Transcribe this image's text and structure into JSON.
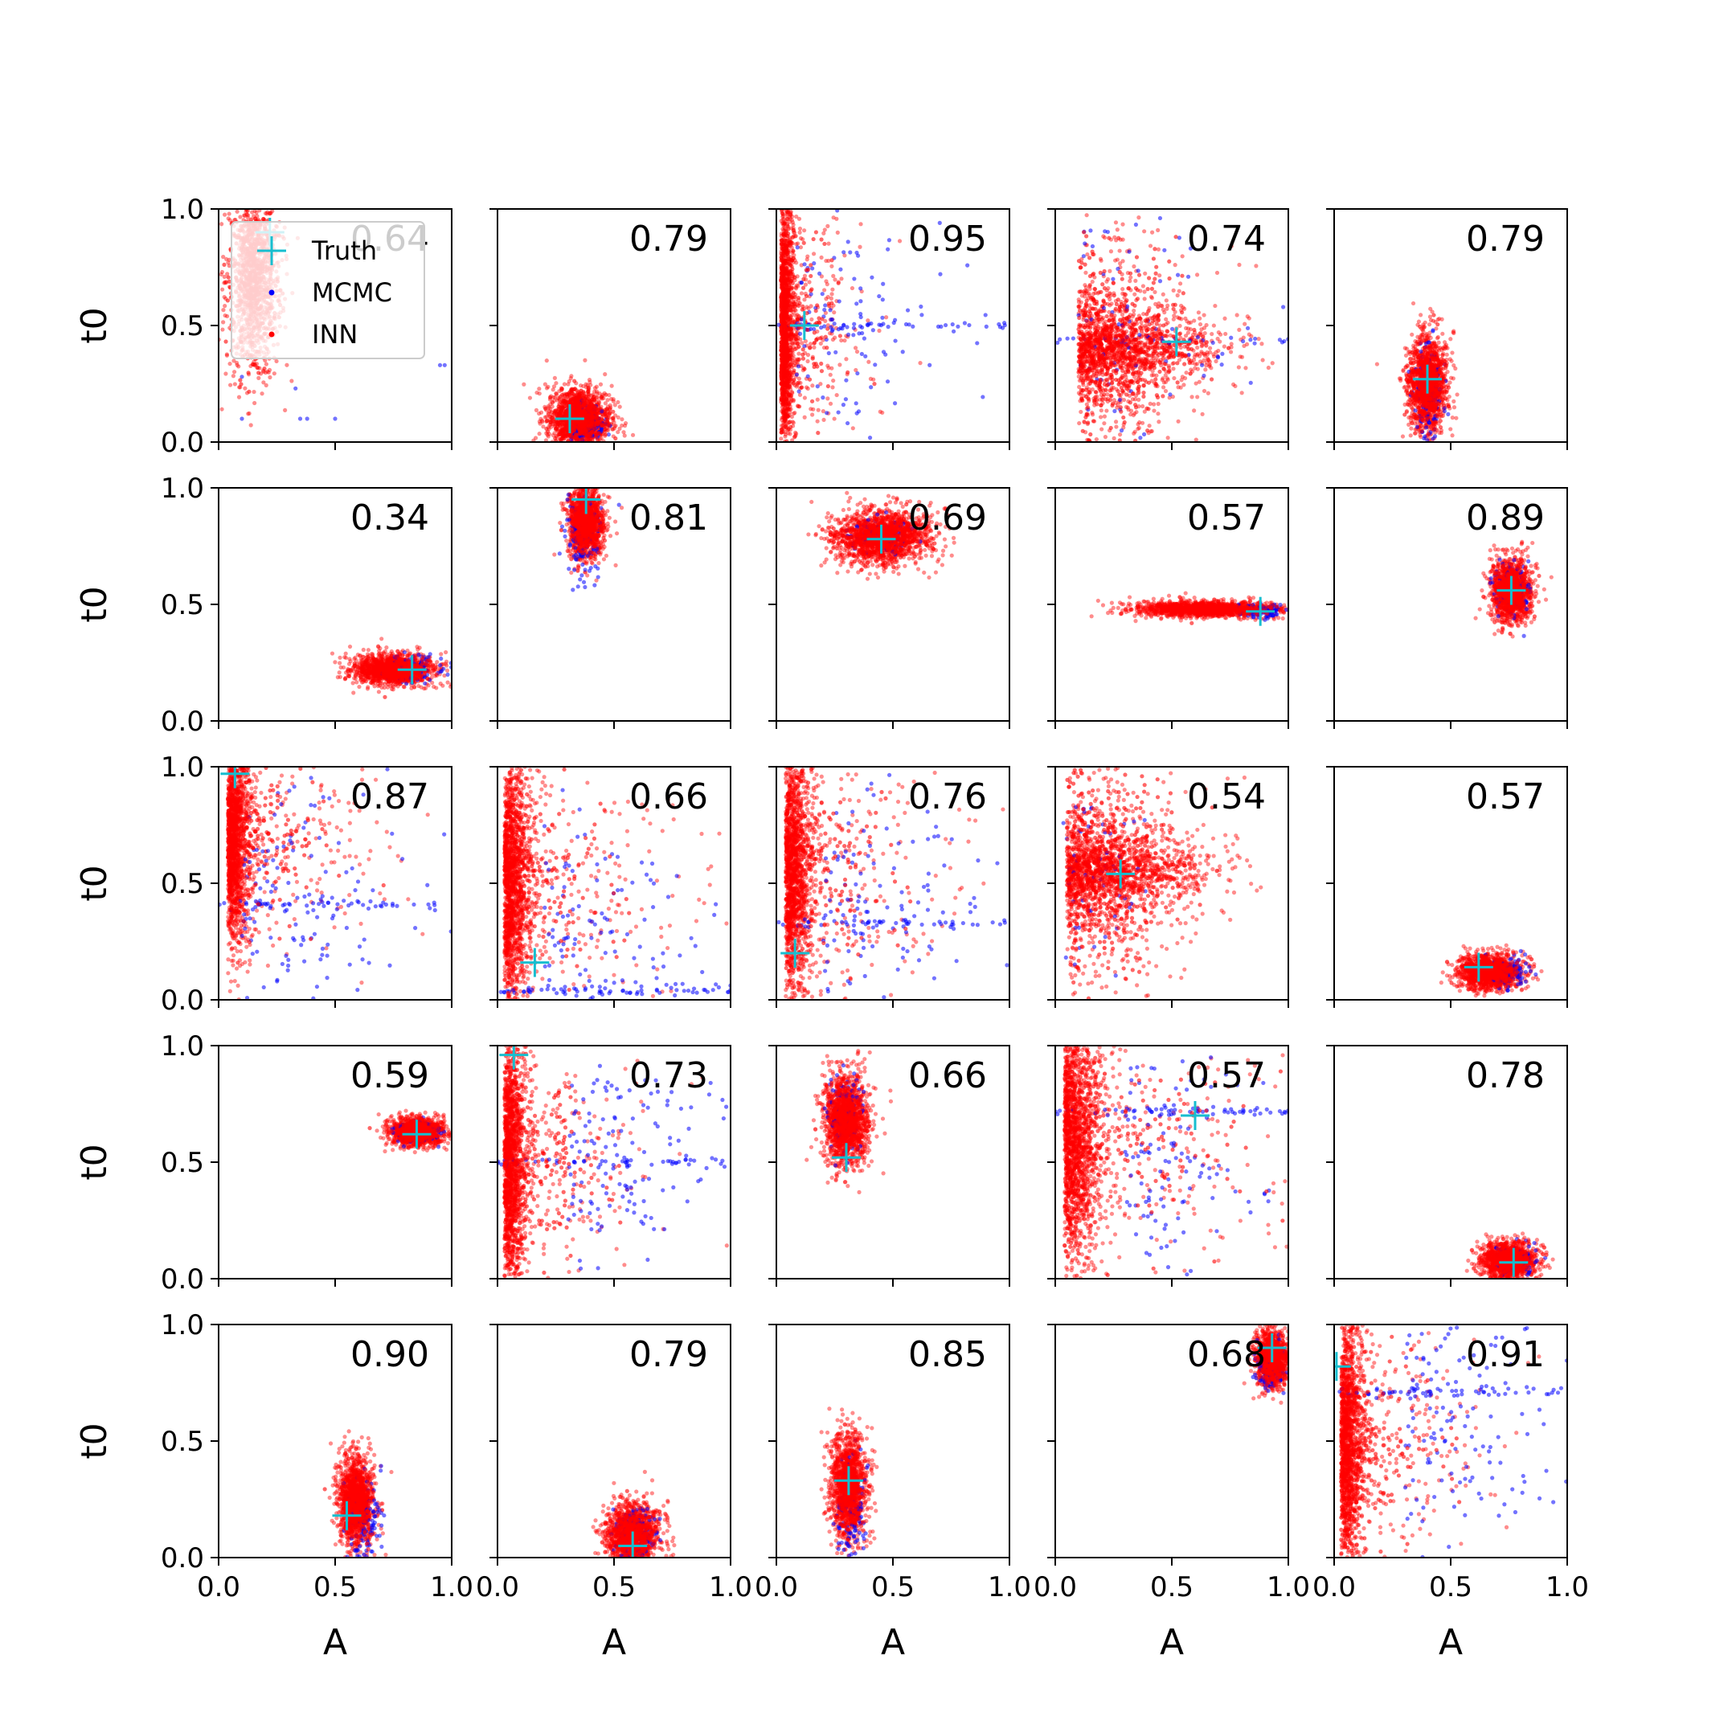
{
  "chart_data": {
    "type": "scatter",
    "layout": "5x5 grid of panels",
    "xlabel": "A",
    "ylabel": "t0",
    "xlim": [
      0,
      1
    ],
    "ylim": [
      0,
      1
    ],
    "x_ticks": [
      "0.0",
      "0.5",
      "1.0"
    ],
    "y_ticks": [
      "0.0",
      "0.5",
      "1.0"
    ],
    "grid": false,
    "legend": {
      "placement": "top-left of first panel",
      "entries": [
        {
          "label": "Truth",
          "marker": "plus",
          "color": "#17BECF"
        },
        {
          "label": "MCMC",
          "marker": "dot",
          "color": "#0000FF"
        },
        {
          "label": "INN",
          "marker": "dot",
          "color": "#FF0000"
        }
      ]
    },
    "colors": {
      "truth": "#17BECF",
      "mcmc": "#0000FF",
      "inn": "#FF0000"
    },
    "panels": [
      {
        "score": "0.64",
        "truth": [
          0.22,
          0.9
        ],
        "inn": {
          "shape": "blob",
          "cx": 0.15,
          "cy": 0.7,
          "sx": 0.06,
          "sy": 0.22,
          "n": 900
        },
        "mcmc": {
          "shape": "sparse",
          "points": [
            [
              0.35,
              0.1
            ],
            [
              0.38,
              0.1
            ],
            [
              0.5,
              0.1
            ],
            [
              0.97,
              0.33
            ],
            [
              0.95,
              0.33
            ],
            [
              0.1,
              0.28
            ],
            [
              0.33,
              0.23
            ],
            [
              0.1,
              0.1
            ]
          ]
        }
      },
      {
        "score": "0.79",
        "truth": [
          0.31,
          0.1
        ],
        "inn": {
          "shape": "blob",
          "cx": 0.35,
          "cy": 0.1,
          "sx": 0.07,
          "sy": 0.07,
          "n": 1100
        },
        "mcmc": {
          "shape": "blob",
          "cx": 0.38,
          "cy": 0.08,
          "sx": 0.04,
          "sy": 0.04,
          "n": 120
        }
      },
      {
        "score": "0.95",
        "truth": [
          0.12,
          0.5
        ],
        "inn": {
          "shape": "wall",
          "cx": 0.02,
          "cy": 0.5,
          "sx": 0.03,
          "sy": 0.3,
          "n": 1200
        },
        "mcmc": {
          "shape": "wall",
          "cx": 0.08,
          "cy": 0.5,
          "sx": 0.25,
          "sy": 0.28,
          "n": 180,
          "line_y": 0.5
        }
      },
      {
        "score": "0.74",
        "truth": [
          0.52,
          0.43
        ],
        "inn": {
          "shape": "fan",
          "cx": 0.1,
          "cy": 0.4,
          "sx": 0.2,
          "sy": 0.2,
          "n": 1300
        },
        "mcmc": {
          "shape": "wall",
          "cx": 0.1,
          "cy": 0.5,
          "sx": 0.3,
          "sy": 0.3,
          "n": 120,
          "line_y": 0.44
        }
      },
      {
        "score": "0.79",
        "truth": [
          0.4,
          0.27
        ],
        "inn": {
          "shape": "blob",
          "cx": 0.4,
          "cy": 0.25,
          "sx": 0.045,
          "sy": 0.11,
          "n": 1000
        },
        "mcmc": {
          "shape": "blob",
          "cx": 0.4,
          "cy": 0.2,
          "sx": 0.03,
          "sy": 0.12,
          "n": 120
        }
      },
      {
        "score": "0.34",
        "truth": [
          0.83,
          0.22
        ],
        "inn": {
          "shape": "blob",
          "cx": 0.75,
          "cy": 0.22,
          "sx": 0.09,
          "sy": 0.035,
          "n": 1000
        },
        "mcmc": {
          "shape": "blob",
          "cx": 0.85,
          "cy": 0.23,
          "sx": 0.06,
          "sy": 0.03,
          "n": 100
        }
      },
      {
        "score": "0.81",
        "truth": [
          0.38,
          0.95
        ],
        "inn": {
          "shape": "blob",
          "cx": 0.38,
          "cy": 0.85,
          "sx": 0.04,
          "sy": 0.08,
          "n": 1000
        },
        "mcmc": {
          "shape": "blob",
          "cx": 0.37,
          "cy": 0.8,
          "sx": 0.04,
          "sy": 0.1,
          "n": 120
        }
      },
      {
        "score": "0.69",
        "truth": [
          0.45,
          0.78
        ],
        "inn": {
          "shape": "blob",
          "cx": 0.45,
          "cy": 0.79,
          "sx": 0.11,
          "sy": 0.06,
          "n": 1200
        },
        "mcmc": {
          "shape": "blob",
          "cx": 0.45,
          "cy": 0.79,
          "sx": 0.08,
          "sy": 0.04,
          "n": 80
        }
      },
      {
        "score": "0.57",
        "truth": [
          0.88,
          0.47
        ],
        "inn": {
          "shape": "blob",
          "cx": 0.65,
          "cy": 0.48,
          "sx": 0.16,
          "sy": 0.018,
          "n": 1000
        },
        "mcmc": {
          "shape": "blob",
          "cx": 0.9,
          "cy": 0.47,
          "sx": 0.05,
          "sy": 0.015,
          "n": 100
        }
      },
      {
        "score": "0.89",
        "truth": [
          0.76,
          0.56
        ],
        "inn": {
          "shape": "blob",
          "cx": 0.76,
          "cy": 0.56,
          "sx": 0.045,
          "sy": 0.07,
          "n": 1000
        },
        "mcmc": {
          "shape": "blob",
          "cx": 0.77,
          "cy": 0.55,
          "sx": 0.04,
          "sy": 0.06,
          "n": 120
        }
      },
      {
        "score": "0.87",
        "truth": [
          0.07,
          0.97
        ],
        "inn": {
          "shape": "wall",
          "cx": 0.04,
          "cy": 0.7,
          "sx": 0.05,
          "sy": 0.25,
          "n": 1200
        },
        "mcmc": {
          "shape": "wall",
          "cx": 0.1,
          "cy": 0.4,
          "sx": 0.3,
          "sy": 0.3,
          "n": 200,
          "line_y": 0.41
        }
      },
      {
        "score": "0.66",
        "truth": [
          0.16,
          0.16
        ],
        "inn": {
          "shape": "wall",
          "cx": 0.03,
          "cy": 0.5,
          "sx": 0.06,
          "sy": 0.3,
          "n": 1200
        },
        "mcmc": {
          "shape": "wall",
          "cx": 0.2,
          "cy": 0.2,
          "sx": 0.3,
          "sy": 0.3,
          "n": 200,
          "line_y": 0.04
        }
      },
      {
        "score": "0.76",
        "truth": [
          0.08,
          0.2
        ],
        "inn": {
          "shape": "wall",
          "cx": 0.04,
          "cy": 0.55,
          "sx": 0.06,
          "sy": 0.3,
          "n": 1200
        },
        "mcmc": {
          "shape": "wall",
          "cx": 0.2,
          "cy": 0.35,
          "sx": 0.3,
          "sy": 0.3,
          "n": 200,
          "line_y": 0.33
        }
      },
      {
        "score": "0.54",
        "truth": [
          0.28,
          0.54
        ],
        "inn": {
          "shape": "fan",
          "cx": 0.05,
          "cy": 0.55,
          "sx": 0.2,
          "sy": 0.2,
          "n": 1400
        },
        "mcmc": {
          "shape": "blob",
          "cx": 0.15,
          "cy": 0.55,
          "sx": 0.1,
          "sy": 0.2,
          "n": 60
        }
      },
      {
        "score": "0.57",
        "truth": [
          0.62,
          0.14
        ],
        "inn": {
          "shape": "blob",
          "cx": 0.67,
          "cy": 0.12,
          "sx": 0.07,
          "sy": 0.04,
          "n": 1000
        },
        "mcmc": {
          "shape": "blob",
          "cx": 0.75,
          "cy": 0.12,
          "sx": 0.05,
          "sy": 0.03,
          "n": 100
        }
      },
      {
        "score": "0.59",
        "truth": [
          0.85,
          0.62
        ],
        "inn": {
          "shape": "blob",
          "cx": 0.85,
          "cy": 0.63,
          "sx": 0.06,
          "sy": 0.03,
          "n": 1000
        },
        "mcmc": {
          "shape": "blob",
          "cx": 0.86,
          "cy": 0.63,
          "sx": 0.05,
          "sy": 0.025,
          "n": 100
        }
      },
      {
        "score": "0.73",
        "truth": [
          0.07,
          0.96
        ],
        "inn": {
          "shape": "wall",
          "cx": 0.03,
          "cy": 0.5,
          "sx": 0.05,
          "sy": 0.3,
          "n": 1200
        },
        "mcmc": {
          "shape": "wall",
          "cx": 0.3,
          "cy": 0.5,
          "sx": 0.3,
          "sy": 0.25,
          "n": 200,
          "line_y": 0.5
        }
      },
      {
        "score": "0.66",
        "truth": [
          0.3,
          0.52
        ],
        "inn": {
          "shape": "blob",
          "cx": 0.3,
          "cy": 0.68,
          "sx": 0.05,
          "sy": 0.1,
          "n": 1100
        },
        "mcmc": {
          "shape": "blob",
          "cx": 0.3,
          "cy": 0.7,
          "sx": 0.04,
          "sy": 0.09,
          "n": 100
        }
      },
      {
        "score": "0.57",
        "truth": [
          0.6,
          0.7
        ],
        "inn": {
          "shape": "wall",
          "cx": 0.04,
          "cy": 0.6,
          "sx": 0.08,
          "sy": 0.3,
          "n": 1300
        },
        "mcmc": {
          "shape": "wall",
          "cx": 0.3,
          "cy": 0.5,
          "sx": 0.3,
          "sy": 0.3,
          "n": 200,
          "line_y": 0.72
        }
      },
      {
        "score": "0.78",
        "truth": [
          0.77,
          0.07
        ],
        "inn": {
          "shape": "blob",
          "cx": 0.75,
          "cy": 0.08,
          "sx": 0.06,
          "sy": 0.04,
          "n": 1000
        },
        "mcmc": {
          "shape": "blob",
          "cx": 0.78,
          "cy": 0.08,
          "sx": 0.05,
          "sy": 0.035,
          "n": 100
        }
      },
      {
        "score": "0.90",
        "truth": [
          0.55,
          0.18
        ],
        "inn": {
          "shape": "blob",
          "cx": 0.59,
          "cy": 0.24,
          "sx": 0.04,
          "sy": 0.1,
          "n": 1000
        },
        "mcmc": {
          "shape": "blob",
          "cx": 0.62,
          "cy": 0.15,
          "sx": 0.04,
          "sy": 0.1,
          "n": 120
        }
      },
      {
        "score": "0.79",
        "truth": [
          0.58,
          0.05
        ],
        "inn": {
          "shape": "blob",
          "cx": 0.58,
          "cy": 0.1,
          "sx": 0.06,
          "sy": 0.07,
          "n": 1000
        },
        "mcmc": {
          "shape": "blob",
          "cx": 0.58,
          "cy": 0.1,
          "sx": 0.05,
          "sy": 0.06,
          "n": 120
        }
      },
      {
        "score": "0.85",
        "truth": [
          0.31,
          0.33
        ],
        "inn": {
          "shape": "blob",
          "cx": 0.31,
          "cy": 0.3,
          "sx": 0.04,
          "sy": 0.12,
          "n": 1000
        },
        "mcmc": {
          "shape": "blob",
          "cx": 0.32,
          "cy": 0.2,
          "sx": 0.03,
          "sy": 0.12,
          "n": 120
        }
      },
      {
        "score": "0.68",
        "truth": [
          0.93,
          0.9
        ],
        "inn": {
          "shape": "blob",
          "cx": 0.93,
          "cy": 0.85,
          "sx": 0.035,
          "sy": 0.06,
          "n": 900
        },
        "mcmc": {
          "shape": "blob",
          "cx": 0.92,
          "cy": 0.82,
          "sx": 0.03,
          "sy": 0.05,
          "n": 100
        }
      },
      {
        "score": "0.91",
        "truth": [
          0.01,
          0.82
        ],
        "inn": {
          "shape": "wall",
          "cx": 0.03,
          "cy": 0.5,
          "sx": 0.05,
          "sy": 0.3,
          "n": 1200
        },
        "mcmc": {
          "shape": "wall",
          "cx": 0.3,
          "cy": 0.6,
          "sx": 0.3,
          "sy": 0.3,
          "n": 220,
          "line_y": 0.71
        }
      }
    ]
  }
}
